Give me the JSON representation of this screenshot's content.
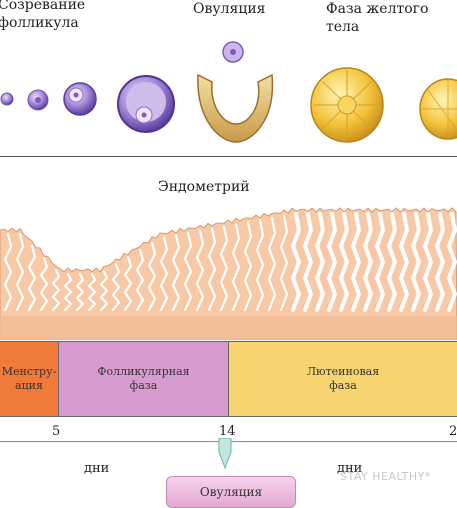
{
  "stages": {
    "maturation": "Созревание\nфолликула",
    "ovulation": "Овуляция",
    "luteal_body": "Фаза желтого\nтела"
  },
  "endometrium_label": "Эндометрий",
  "phases": [
    {
      "label": "Менстру-\nация",
      "color": "#f07a3a"
    },
    {
      "label": "Фолликулярная\nфаза",
      "color": "#d79bd0"
    },
    {
      "label": "Лютеиновая\nфаза",
      "color": "#f8d470"
    }
  ],
  "day_ticks": [
    "5",
    "14",
    "2"
  ],
  "days_label_left": "дни",
  "days_label_right": "дни",
  "bottom_box_label": "Овуляция",
  "watermark": "STAY HEALTHY*"
}
